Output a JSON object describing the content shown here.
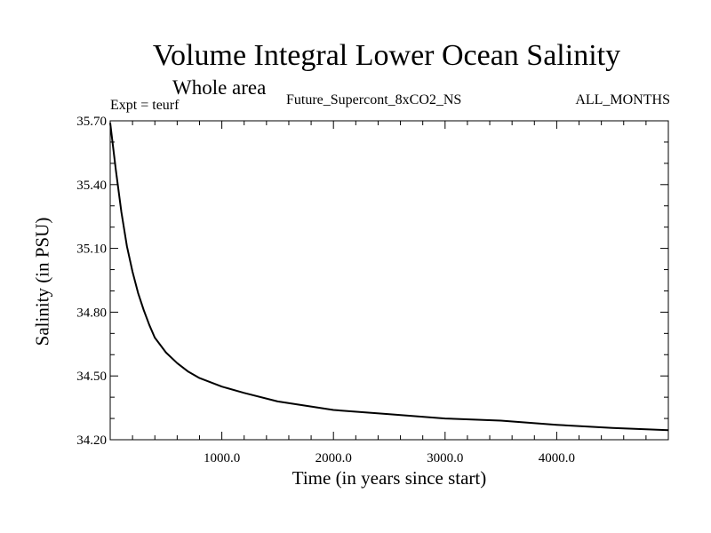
{
  "chart_data": {
    "type": "line",
    "title": "Volume Integral Lower Ocean Salinity",
    "subtitle": "Whole area",
    "annotations": {
      "left": "Expt = teurf",
      "center": "Future_Supercont_8xCO2_NS",
      "right": "ALL_MONTHS"
    },
    "xlabel": "Time (in years since start)",
    "ylabel": "Salinity (in PSU)",
    "xlim": [
      0,
      5000
    ],
    "ylim": [
      34.2,
      35.7
    ],
    "xticks": [
      1000,
      2000,
      3000,
      4000
    ],
    "xtick_labels": [
      "1000.0",
      "2000.0",
      "3000.0",
      "4000.0"
    ],
    "yticks": [
      34.2,
      34.5,
      34.8,
      35.1,
      35.4,
      35.7
    ],
    "ytick_labels": [
      "34.20",
      "34.50",
      "34.80",
      "35.10",
      "35.40",
      "35.70"
    ],
    "grid": false,
    "legend": "none",
    "series": [
      {
        "color": "#000000",
        "x": [
          0,
          50,
          100,
          150,
          200,
          250,
          300,
          350,
          400,
          500,
          600,
          700,
          800,
          1000,
          1200,
          1500,
          2000,
          2500,
          3000,
          3500,
          4000,
          4500,
          5000
        ],
        "y": [
          35.69,
          35.47,
          35.27,
          35.11,
          34.99,
          34.89,
          34.81,
          34.74,
          34.68,
          34.61,
          34.56,
          34.52,
          34.49,
          34.45,
          34.42,
          34.38,
          34.34,
          34.32,
          34.3,
          34.29,
          34.27,
          34.255,
          34.245
        ]
      }
    ]
  }
}
